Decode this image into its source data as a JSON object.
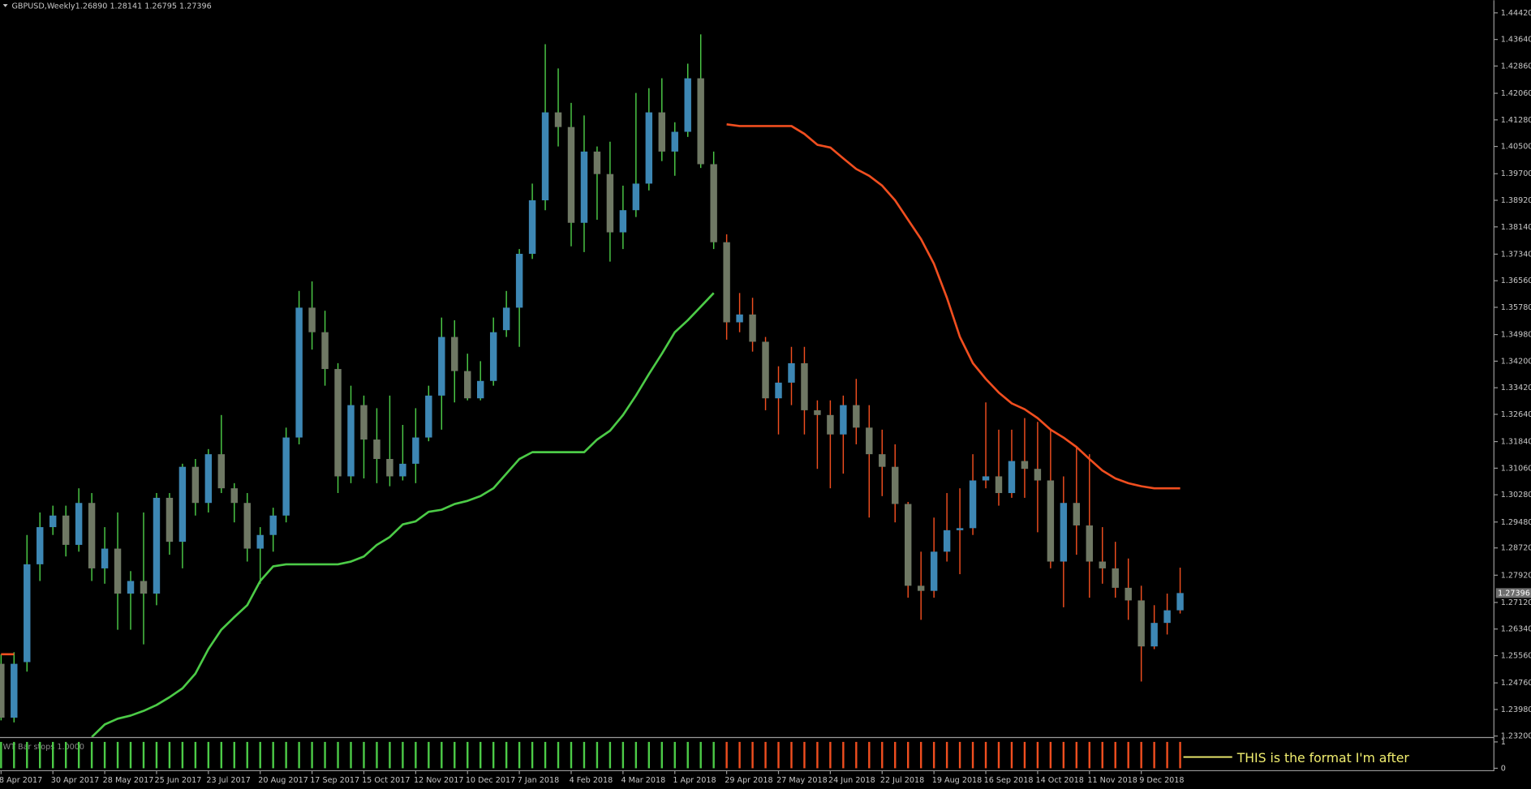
{
  "header": {
    "symbol": "GBPUSD,Weekly",
    "ohlc": "1.26890 1.28141 1.26795 1.27396"
  },
  "annotation": "THIS is the format I'm after",
  "chart_data": [
    {
      "type": "candlestick",
      "categories": [
        "8 Apr 2017",
        null,
        null,
        null,
        "30 Apr 2017",
        null,
        null,
        null,
        "28 May 2017",
        null,
        null,
        null,
        "25 Jun 2017",
        null,
        null,
        null,
        "23 Jul 2017",
        null,
        null,
        null,
        "20 Aug 2017",
        null,
        null,
        null,
        "17 Sep 2017",
        null,
        null,
        null,
        "15 Oct 2017",
        null,
        null,
        null,
        "12 Nov 2017",
        null,
        null,
        null,
        "10 Dec 2017",
        null,
        null,
        null,
        "7 Jan 2018",
        null,
        null,
        null,
        "4 Feb 2018",
        null,
        null,
        null,
        "4 Mar 2018",
        null,
        null,
        null,
        "1 Apr 2018",
        null,
        null,
        null,
        "29 Apr 2018",
        null,
        null,
        null,
        "27 May 2018",
        null,
        null,
        null,
        "24 Jun 2018",
        null,
        null,
        null,
        "22 Jul 2018",
        null,
        null,
        null,
        "19 Aug 2018",
        null,
        null,
        null,
        "16 Sep 2018",
        null,
        null,
        null,
        "14 Oct 2018",
        null,
        null,
        null,
        "11 Nov 2018",
        null,
        null,
        null,
        "9 Dec 2018",
        null,
        null,
        null
      ],
      "open": [
        1.2532,
        1.2374,
        1.2537,
        1.2824,
        1.2933,
        1.2967,
        1.2881,
        1.3004,
        1.2812,
        1.287,
        1.2738,
        1.2775,
        1.2738,
        1.3019,
        1.289,
        1.311,
        1.3004,
        1.3147,
        1.3047,
        1.3004,
        1.287,
        1.291,
        1.2967,
        1.3196,
        1.3577,
        1.3505,
        1.3397,
        1.3082,
        1.3291,
        1.319,
        1.3133,
        1.3082,
        1.3119,
        1.3196,
        1.3319,
        1.3491,
        1.3391,
        1.3311,
        1.3362,
        1.3511,
        1.3577,
        1.3735,
        1.3892,
        1.415,
        1.4107,
        1.3826,
        1.4035,
        1.3969,
        1.3798,
        1.3863,
        1.3941,
        1.415,
        1.4035,
        1.4093,
        1.425,
        1.3998,
        1.3769,
        1.3534,
        1.3557,
        1.3477,
        1.3311,
        1.3357,
        1.3414,
        1.3276,
        1.3262,
        1.3205,
        1.3291,
        1.3225,
        1.3147,
        1.311,
        1.3001,
        1.2761,
        1.2746,
        1.2861,
        1.2924,
        1.293,
        1.307,
        1.3082,
        1.3033,
        1.3127,
        1.3104,
        1.307,
        1.2832,
        1.3004,
        1.2938,
        1.2832,
        1.2812,
        1.2755,
        1.2718,
        1.2583,
        1.2652,
        1.2689
      ],
      "high": [
        1.256,
        1.2566,
        1.291,
        1.2976,
        1.2996,
        1.2996,
        1.3047,
        1.3033,
        1.2933,
        1.2976,
        1.2804,
        1.2976,
        1.3033,
        1.3033,
        1.3119,
        1.3133,
        1.3162,
        1.3262,
        1.3062,
        1.3033,
        1.2933,
        1.299,
        1.3225,
        1.3626,
        1.3654,
        1.3568,
        1.3414,
        1.3348,
        1.3319,
        1.3282,
        1.3319,
        1.3233,
        1.3282,
        1.3348,
        1.3548,
        1.354,
        1.3442,
        1.342,
        1.3548,
        1.3626,
        1.3749,
        1.3941,
        1.435,
        1.4279,
        1.4178,
        1.4141,
        1.405,
        1.4064,
        1.3935,
        1.4207,
        1.4221,
        1.425,
        1.4121,
        1.4293,
        1.4379,
        1.4035,
        1.3792,
        1.362,
        1.3606,
        1.3491,
        1.3405,
        1.3462,
        1.3462,
        1.3305,
        1.3305,
        1.3319,
        1.3368,
        1.3291,
        1.3219,
        1.3176,
        1.3007,
        1.2861,
        1.2961,
        1.3033,
        1.3047,
        1.3147,
        1.3299,
        1.3219,
        1.3219,
        1.3253,
        1.3242,
        1.3219,
        1.3082,
        1.3168,
        1.3147,
        1.2933,
        1.289,
        1.2841,
        1.2761,
        1.2704,
        1.2738,
        1.28141
      ],
      "low": [
        1.2366,
        1.236,
        1.2509,
        1.2775,
        1.291,
        1.2847,
        1.2861,
        1.2775,
        1.2767,
        1.2632,
        1.2632,
        1.2589,
        1.2704,
        1.2852,
        1.2812,
        1.2967,
        1.2976,
        1.3033,
        1.2947,
        1.2832,
        1.2767,
        1.2861,
        1.2947,
        1.3176,
        1.3454,
        1.3348,
        1.3033,
        1.3062,
        1.3076,
        1.3062,
        1.3053,
        1.307,
        1.3062,
        1.3185,
        1.3219,
        1.3299,
        1.3305,
        1.3305,
        1.3348,
        1.3491,
        1.3462,
        1.372,
        1.3863,
        1.405,
        1.3757,
        1.374,
        1.3835,
        1.3712,
        1.3749,
        1.3843,
        1.3921,
        1.4007,
        1.3964,
        1.4078,
        1.3987,
        1.3749,
        1.3483,
        1.3505,
        1.3448,
        1.3276,
        1.3205,
        1.3291,
        1.3205,
        1.3104,
        1.3047,
        1.309,
        1.3176,
        1.2961,
        1.3024,
        1.2947,
        1.2726,
        1.2661,
        1.2726,
        1.2832,
        1.2795,
        1.291,
        1.3047,
        1.2996,
        1.3019,
        1.3019,
        1.2918,
        1.2812,
        1.2698,
        1.2852,
        1.2726,
        1.2767,
        1.2726,
        1.2661,
        1.248,
        1.2575,
        1.2618,
        1.26795
      ],
      "close": [
        1.2374,
        1.2532,
        1.2824,
        1.2933,
        1.2967,
        1.2881,
        1.3004,
        1.2812,
        1.287,
        1.2738,
        1.2775,
        1.2738,
        1.3019,
        1.289,
        1.311,
        1.3004,
        1.3147,
        1.3047,
        1.3004,
        1.287,
        1.291,
        1.2967,
        1.3196,
        1.3577,
        1.3505,
        1.3397,
        1.3082,
        1.3291,
        1.319,
        1.3133,
        1.3082,
        1.3119,
        1.3196,
        1.3319,
        1.3491,
        1.3391,
        1.3311,
        1.3362,
        1.3505,
        1.3577,
        1.3735,
        1.3892,
        1.415,
        1.4107,
        1.3826,
        1.4035,
        1.3969,
        1.3798,
        1.3863,
        1.3941,
        1.415,
        1.4035,
        1.4093,
        1.425,
        1.3998,
        1.3769,
        1.3534,
        1.3557,
        1.3477,
        1.3311,
        1.3357,
        1.3414,
        1.3276,
        1.3262,
        1.3205,
        1.3291,
        1.3225,
        1.3147,
        1.311,
        1.3001,
        1.2761,
        1.2746,
        1.2861,
        1.2924,
        1.293,
        1.307,
        1.3082,
        1.3033,
        1.3127,
        1.3104,
        1.307,
        1.2832,
        1.3004,
        1.2938,
        1.2832,
        1.2812,
        1.2755,
        1.2718,
        1.2583,
        1.2652,
        1.2689,
        1.27396
      ],
      "bull_color": "#3d87b4",
      "bear_color": "#6f7864",
      "lines": [
        {
          "color": "#4ccb47",
          "values": [
            null,
            null,
            null,
            null,
            null,
            null,
            null,
            1.2317,
            1.2354,
            1.2371,
            1.238,
            1.2394,
            1.2411,
            1.2434,
            1.246,
            1.2503,
            1.2575,
            1.2632,
            1.2669,
            1.2704,
            1.2775,
            1.2818,
            1.2824,
            1.2824,
            1.2824,
            1.2824,
            1.2824,
            1.2832,
            1.2847,
            1.2881,
            1.2904,
            1.2941,
            1.295,
            1.2978,
            1.2984,
            1.3001,
            1.301,
            1.3024,
            1.3047,
            1.309,
            1.3133,
            1.3153,
            1.3153,
            1.3153,
            1.3153,
            1.3153,
            1.319,
            1.3216,
            1.3262,
            1.3319,
            1.3382,
            1.3442,
            1.3505,
            1.354,
            1.358,
            1.362,
            null,
            null,
            null,
            null,
            null,
            null,
            null,
            null,
            null,
            null,
            null,
            null,
            null,
            null,
            null,
            null,
            null,
            null,
            null,
            null,
            null,
            null,
            null,
            null,
            null,
            null,
            null,
            null,
            null,
            null,
            null,
            null,
            null,
            null,
            null,
            null
          ]
        },
        {
          "color": "#f04e1f",
          "values": [
            1.256,
            1.256,
            null,
            null,
            null,
            null,
            null,
            null,
            null,
            null,
            null,
            null,
            null,
            null,
            null,
            null,
            null,
            null,
            null,
            null,
            null,
            null,
            null,
            null,
            null,
            null,
            null,
            null,
            null,
            null,
            null,
            null,
            null,
            null,
            null,
            null,
            null,
            null,
            null,
            null,
            null,
            null,
            null,
            null,
            null,
            null,
            null,
            null,
            null,
            null,
            null,
            null,
            null,
            null,
            null,
            null,
            1.4115,
            1.411,
            1.411,
            1.411,
            1.411,
            1.411,
            1.4087,
            1.4055,
            1.4047,
            1.4015,
            1.3984,
            1.3964,
            1.3935,
            1.3892,
            1.3835,
            1.3778,
            1.3706,
            1.3606,
            1.3491,
            1.3414,
            1.3368,
            1.3328,
            1.3296,
            1.3279,
            1.3253,
            1.3219,
            1.3196,
            1.3168,
            1.3133,
            1.3099,
            1.3076,
            1.3062,
            1.3053,
            1.3047,
            1.3047,
            1.3047
          ]
        }
      ],
      "ylim": [
        1.232,
        1.4479
      ],
      "yticks": [
        {
          "value": 1.4442,
          "label": "1.44420"
        },
        {
          "value": 1.4364,
          "label": "1.43640"
        },
        {
          "value": 1.4286,
          "label": "1.42860"
        },
        {
          "value": 1.4206,
          "label": "1.42060"
        },
        {
          "value": 1.4128,
          "label": "1.41280"
        },
        {
          "value": 1.405,
          "label": "1.40500"
        },
        {
          "value": 1.397,
          "label": "1.39700"
        },
        {
          "value": 1.3892,
          "label": "1.38920"
        },
        {
          "value": 1.3814,
          "label": "1.38140"
        },
        {
          "value": 1.3734,
          "label": "1.37340"
        },
        {
          "value": 1.3656,
          "label": "1.36560"
        },
        {
          "value": 1.3578,
          "label": "1.35780"
        },
        {
          "value": 1.3498,
          "label": "1.34980"
        },
        {
          "value": 1.342,
          "label": "1.34200"
        },
        {
          "value": 1.3342,
          "label": "1.33420"
        },
        {
          "value": 1.3264,
          "label": "1.32640"
        },
        {
          "value": 1.3184,
          "label": "1.31840"
        },
        {
          "value": 1.3106,
          "label": "1.31060"
        },
        {
          "value": 1.3028,
          "label": "1.30280"
        },
        {
          "value": 1.2948,
          "label": "1.29480"
        },
        {
          "value": 1.2872,
          "label": "1.28720"
        },
        {
          "value": 1.2792,
          "label": "1.27920"
        },
        {
          "value": 1.2712,
          "label": "1.27120"
        },
        {
          "value": 1.2634,
          "label": "1.26340"
        },
        {
          "value": 1.2556,
          "label": "1.25560"
        },
        {
          "value": 1.2476,
          "label": "1.24760"
        },
        {
          "value": 1.2398,
          "label": "1.23980"
        },
        {
          "value": 1.232,
          "label": "1.23200"
        }
      ],
      "last_price_label": "1.27396"
    },
    {
      "type": "bar",
      "title": "WT Bar stops 1.0000",
      "series": [
        {
          "color": "#4ccb47",
          "values": [
            1,
            1,
            1,
            1,
            1,
            1,
            1,
            1,
            1,
            1,
            1,
            1,
            1,
            1,
            1,
            1,
            1,
            1,
            1,
            1,
            1,
            1,
            1,
            1,
            1,
            1,
            1,
            1,
            1,
            1,
            1,
            1,
            1,
            1,
            1,
            1,
            1,
            1,
            1,
            1,
            1,
            1,
            1,
            1,
            1,
            1,
            1,
            1,
            1,
            1,
            1,
            1,
            1,
            1,
            1,
            1,
            null,
            null,
            null,
            null,
            null,
            null,
            null,
            null,
            null,
            null,
            null,
            null,
            null,
            null,
            null,
            null,
            null,
            null,
            null,
            null,
            null,
            null,
            null,
            null,
            null,
            null,
            null,
            null,
            null,
            null,
            null,
            null,
            null,
            null,
            null,
            null
          ]
        },
        {
          "color": "#f04e1f",
          "values": [
            null,
            null,
            null,
            null,
            null,
            null,
            null,
            null,
            null,
            null,
            null,
            null,
            null,
            null,
            null,
            null,
            null,
            null,
            null,
            null,
            null,
            null,
            null,
            null,
            null,
            null,
            null,
            null,
            null,
            null,
            null,
            null,
            null,
            null,
            null,
            null,
            null,
            null,
            null,
            null,
            null,
            null,
            null,
            null,
            null,
            null,
            null,
            null,
            null,
            null,
            null,
            null,
            null,
            null,
            null,
            null,
            1,
            1,
            1,
            1,
            1,
            1,
            1,
            1,
            1,
            1,
            1,
            1,
            1,
            1,
            1,
            1,
            1,
            1,
            1,
            1,
            1,
            1,
            1,
            1,
            1,
            1,
            1,
            1,
            1,
            1,
            1,
            1,
            1,
            1,
            1,
            1
          ]
        }
      ],
      "ylim": [
        0,
        1
      ],
      "yticks": [
        0,
        1
      ]
    }
  ]
}
